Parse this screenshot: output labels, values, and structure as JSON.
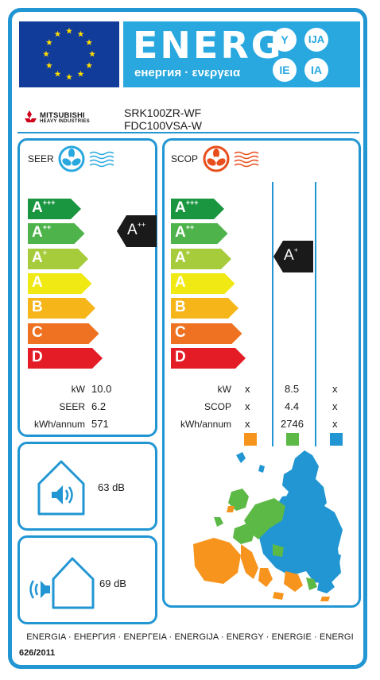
{
  "header": {
    "title": "ENERG",
    "subtitle": "енергия · ενεργεια",
    "lang_badges": [
      "Y",
      "IJA",
      "IE",
      "IA"
    ],
    "flag_color": "#123c99",
    "band_color": "#29a8e0"
  },
  "supplier": {
    "brand_name": "MITSUBISHI",
    "brand_subline": "HEAVY INDUSTRIES",
    "model_indoor": "SRK100ZR-WF",
    "model_outdoor": "FDC100VSA-W"
  },
  "seer": {
    "label": "SEER",
    "scale": [
      {
        "letter": "A",
        "plus": "+++",
        "color": "#1a9640"
      },
      {
        "letter": "A",
        "plus": "++",
        "color": "#4db34a"
      },
      {
        "letter": "A",
        "plus": "+",
        "color": "#a6cb3b"
      },
      {
        "letter": "A",
        "plus": "",
        "color": "#f0e914"
      },
      {
        "letter": "B",
        "plus": "",
        "color": "#f6b519"
      },
      {
        "letter": "C",
        "plus": "",
        "color": "#ee7221"
      },
      {
        "letter": "D",
        "plus": "",
        "color": "#e41c25"
      }
    ],
    "rating": {
      "letter": "A",
      "plus": "++"
    },
    "values": [
      {
        "label": "kW",
        "value": "10.0"
      },
      {
        "label": "SEER",
        "value": "6.2"
      },
      {
        "label": "kWh/annum",
        "value": "571"
      }
    ]
  },
  "scop": {
    "label": "SCOP",
    "scale": [
      {
        "letter": "A",
        "plus": "+++",
        "color": "#1a9640"
      },
      {
        "letter": "A",
        "plus": "++",
        "color": "#4db34a"
      },
      {
        "letter": "A",
        "plus": "+",
        "color": "#a6cb3b"
      },
      {
        "letter": "A",
        "plus": "",
        "color": "#f0e914"
      },
      {
        "letter": "B",
        "plus": "",
        "color": "#f6b519"
      },
      {
        "letter": "C",
        "plus": "",
        "color": "#ee7221"
      },
      {
        "letter": "D",
        "plus": "",
        "color": "#e41c25"
      }
    ],
    "rating": {
      "letter": "A",
      "plus": "+"
    },
    "rows": [
      {
        "label": "kW",
        "cols": [
          "x",
          "8.5",
          "x"
        ]
      },
      {
        "label": "SCOP",
        "cols": [
          "x",
          "4.4",
          "x"
        ]
      },
      {
        "label": "kWh/annum",
        "cols": [
          "x",
          "2746",
          "x"
        ]
      }
    ],
    "zone_colors": [
      "#f7941d",
      "#5cb946",
      "#2196d3"
    ]
  },
  "noise": {
    "indoor": "63 dB",
    "outdoor": "69 dB"
  },
  "footer": {
    "languages": "ENERGIA · ЕНЕРГИЯ · ΕΝΕΡΓΕΙΑ · ENERGIJA · ENERGY · ENERGIE · ENERGI",
    "regulation": "626/2011"
  }
}
